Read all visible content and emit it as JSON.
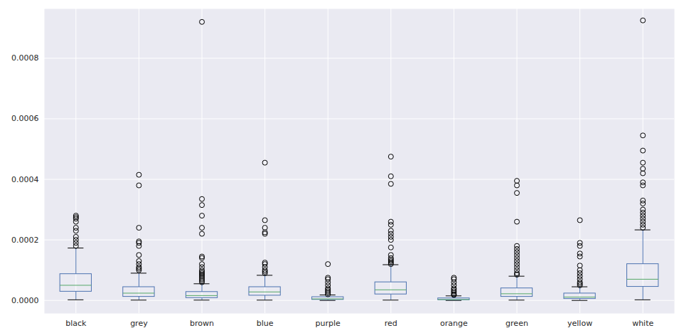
{
  "chart_data": {
    "type": "box",
    "categories": [
      "black",
      "grey",
      "brown",
      "blue",
      "purple",
      "red",
      "orange",
      "green",
      "yellow",
      "white"
    ],
    "whisker_low": [
      2e-06,
      1e-06,
      1e-06,
      1e-06,
      0.0,
      1e-06,
      0.0,
      1e-06,
      0.0,
      2e-06
    ],
    "q1": [
      2.9e-05,
      1.2e-05,
      8e-06,
      1.6e-05,
      2e-06,
      2e-05,
      1e-06,
      1.2e-05,
      5e-06,
      4.5e-05
    ],
    "median": [
      5e-05,
      2.4e-05,
      1.6e-05,
      2.8e-05,
      5e-06,
      3.5e-05,
      3e-06,
      2.2e-05,
      1.1e-05,
      7e-05
    ],
    "q3": [
      8.7e-05,
      4.4e-05,
      2.8e-05,
      4.4e-05,
      1.1e-05,
      6e-05,
      7e-06,
      4e-05,
      2.3e-05,
      0.00012
    ],
    "whisker_high": [
      0.000173,
      9e-05,
      5.5e-05,
      8.3e-05,
      1.8e-05,
      0.000118,
      1.5e-05,
      8e-05,
      4.5e-05,
      0.000233
    ],
    "outliers": [
      [
        0.00018,
        0.00019,
        0.0002,
        0.00021,
        0.00023,
        0.00024,
        0.00026,
        0.00027,
        0.000275,
        0.00028
      ],
      [
        0.0001,
        0.000105,
        0.00011,
        0.00012,
        0.00013,
        0.00015,
        0.00018,
        0.00019,
        0.000195,
        0.00024,
        0.00038,
        0.000415
      ],
      [
        6e-05,
        6.5e-05,
        7e-05,
        7.5e-05,
        8e-05,
        8.5e-05,
        9e-05,
        9.5e-05,
        0.0001,
        0.00011,
        0.00012,
        0.00014,
        0.000145,
        0.00022,
        0.00024,
        0.00028,
        0.000315,
        0.000335,
        0.00092
      ],
      [
        9e-05,
        9.5e-05,
        0.0001,
        0.00011,
        0.00012,
        0.000125,
        0.00022,
        0.000225,
        0.00024,
        0.000265,
        0.000455
      ],
      [
        2e-05,
        2.5e-05,
        3e-05,
        3.5e-05,
        4e-05,
        5e-05,
        6e-05,
        7e-05,
        7.5e-05,
        0.00012
      ],
      [
        0.00012,
        0.000125,
        0.00013,
        0.000135,
        0.00014,
        0.00015,
        0.000175,
        0.0002,
        0.00021,
        0.00022,
        0.00023,
        0.00025,
        0.00026,
        0.000385,
        0.00041,
        0.000475
      ],
      [
        1.8e-05,
        2e-05,
        2.5e-05,
        3e-05,
        3.5e-05,
        4e-05,
        5e-05,
        6e-05,
        7e-05,
        7.5e-05
      ],
      [
        8.5e-05,
        9e-05,
        0.0001,
        0.00011,
        0.00012,
        0.00013,
        0.00014,
        0.00015,
        0.00016,
        0.00017,
        0.00018,
        0.00026,
        0.000355,
        0.00038,
        0.000395
      ],
      [
        5e-05,
        5.5e-05,
        6e-05,
        7e-05,
        8e-05,
        9e-05,
        0.0001,
        0.000115,
        0.000145,
        0.000155,
        0.00018,
        0.00019,
        0.000265
      ],
      [
        0.00024,
        0.00025,
        0.00026,
        0.00027,
        0.00028,
        0.00029,
        0.0003,
        0.00032,
        0.00033,
        0.00038,
        0.00039,
        0.00042,
        0.000435,
        0.000455,
        0.000495,
        0.000545,
        0.000925
      ]
    ],
    "color": "#4c72b0",
    "ylim": [
      -4.3e-05,
      0.000963
    ],
    "yticks": [
      {
        "value": 0,
        "label": "0.0000"
      },
      {
        "value": 0.0002,
        "label": "0.0002"
      },
      {
        "value": 0.0004,
        "label": "0.0004"
      },
      {
        "value": 0.0006,
        "label": "0.0006"
      },
      {
        "value": 0.0008,
        "label": "0.0008"
      }
    ],
    "grid": true
  }
}
